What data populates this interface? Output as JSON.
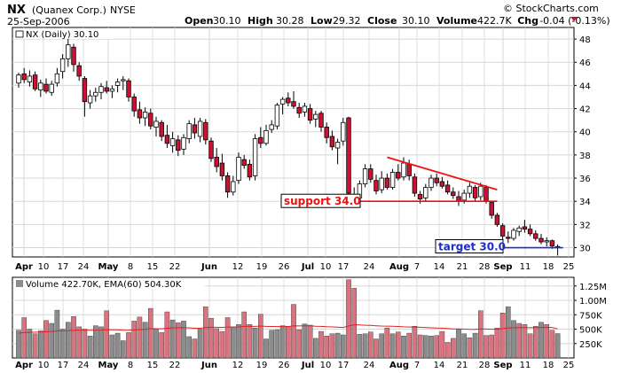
{
  "header": {
    "symbol": "NX",
    "company": "(Quanex Corp.)",
    "exchange": "NYSE",
    "date": "25-Sep-2006",
    "copyright": "© StockCharts.com",
    "stats": [
      {
        "label": "Open",
        "value": "30.10"
      },
      {
        "label": "High",
        "value": "30.28"
      },
      {
        "label": "Low",
        "value": "29.32"
      },
      {
        "label": "Close",
        "value": "30.10"
      },
      {
        "label": "Volume",
        "value": "422.7K"
      },
      {
        "label": "Chg",
        "value": "-0.04 (-0.13%)"
      }
    ]
  },
  "price_panel": {
    "legend": "NX (Daily) 30.10",
    "y_ticks": [
      30,
      32,
      34,
      36,
      38,
      40,
      42,
      44,
      46,
      48
    ],
    "support_label": "support 34.0",
    "target_label": "target 30.0"
  },
  "volume_panel": {
    "legend": "Volume 422.70K, EMA(60) 504.30K",
    "y_tick_labels": [
      "1.25M",
      "1.00M",
      "750K",
      "500K",
      "250K"
    ]
  },
  "x_axis_labels": [
    {
      "text": "Apr",
      "bold": true
    },
    {
      "text": "10",
      "bold": false
    },
    {
      "text": "17",
      "bold": false
    },
    {
      "text": "24",
      "bold": false
    },
    {
      "text": "May",
      "bold": true
    },
    {
      "text": "8",
      "bold": false
    },
    {
      "text": "15",
      "bold": false
    },
    {
      "text": "22",
      "bold": false
    },
    {
      "text": "Jun",
      "bold": true
    },
    {
      "text": "12",
      "bold": false
    },
    {
      "text": "19",
      "bold": false
    },
    {
      "text": "26",
      "bold": false
    },
    {
      "text": "Jul",
      "bold": true
    },
    {
      "text": "10",
      "bold": false
    },
    {
      "text": "17",
      "bold": false
    },
    {
      "text": "24",
      "bold": false
    },
    {
      "text": "Aug",
      "bold": true
    },
    {
      "text": "7",
      "bold": false
    },
    {
      "text": "14",
      "bold": false
    },
    {
      "text": "21",
      "bold": false
    },
    {
      "text": "28",
      "bold": false
    },
    {
      "text": "Sep",
      "bold": true
    },
    {
      "text": "11",
      "bold": false
    },
    {
      "text": "18",
      "bold": false
    },
    {
      "text": "25",
      "bold": false
    }
  ],
  "colors": {
    "up_fill": "#ffffff",
    "down_fill": "#cc1133",
    "vol_down": "#d9737f",
    "vol_up": "#8c8c8c",
    "trend_line": "#ee1111",
    "target_line": "#1c2ec8",
    "grid": "#d7d7d7",
    "ema": "#dd2222"
  },
  "chart_data": [
    {
      "type": "candlestick",
      "ylim": [
        29.2,
        49
      ],
      "ylabel_side": "right",
      "candles": [
        {
          "o": 44.2,
          "h": 45.1,
          "l": 43.8,
          "c": 44.9
        },
        {
          "o": 45.0,
          "h": 45.5,
          "l": 44.2,
          "c": 44.5
        },
        {
          "o": 44.3,
          "h": 45.3,
          "l": 43.9,
          "c": 44.8
        },
        {
          "o": 44.9,
          "h": 45.2,
          "l": 43.5,
          "c": 43.7
        },
        {
          "o": 43.6,
          "h": 44.5,
          "l": 43.0,
          "c": 44.2
        },
        {
          "o": 44.1,
          "h": 44.6,
          "l": 43.3,
          "c": 43.5
        },
        {
          "o": 43.4,
          "h": 44.4,
          "l": 43.1,
          "c": 44.1
        },
        {
          "o": 44.2,
          "h": 45.5,
          "l": 43.9,
          "c": 45.0
        },
        {
          "o": 45.2,
          "h": 46.7,
          "l": 44.6,
          "c": 46.3
        },
        {
          "o": 46.3,
          "h": 48.0,
          "l": 45.6,
          "c": 47.5
        },
        {
          "o": 47.3,
          "h": 47.6,
          "l": 45.2,
          "c": 45.8
        },
        {
          "o": 45.7,
          "h": 46.0,
          "l": 44.4,
          "c": 44.8
        },
        {
          "o": 44.6,
          "h": 44.8,
          "l": 41.3,
          "c": 42.6
        },
        {
          "o": 42.5,
          "h": 43.6,
          "l": 42.0,
          "c": 43.1
        },
        {
          "o": 43.1,
          "h": 43.8,
          "l": 42.6,
          "c": 43.4
        },
        {
          "o": 43.4,
          "h": 44.2,
          "l": 42.8,
          "c": 43.9
        },
        {
          "o": 43.8,
          "h": 44.4,
          "l": 43.3,
          "c": 43.5
        },
        {
          "o": 43.5,
          "h": 44.0,
          "l": 42.9,
          "c": 43.7
        },
        {
          "o": 44.0,
          "h": 44.6,
          "l": 43.4,
          "c": 44.3
        },
        {
          "o": 44.4,
          "h": 44.8,
          "l": 43.6,
          "c": 44.5
        },
        {
          "o": 44.4,
          "h": 44.6,
          "l": 42.6,
          "c": 43.0
        },
        {
          "o": 43.0,
          "h": 43.3,
          "l": 41.3,
          "c": 41.8
        },
        {
          "o": 41.9,
          "h": 42.6,
          "l": 40.7,
          "c": 41.2
        },
        {
          "o": 41.2,
          "h": 42.1,
          "l": 40.5,
          "c": 41.7
        },
        {
          "o": 41.6,
          "h": 42.0,
          "l": 40.2,
          "c": 40.5
        },
        {
          "o": 40.4,
          "h": 41.3,
          "l": 39.6,
          "c": 40.9
        },
        {
          "o": 40.8,
          "h": 41.0,
          "l": 39.2,
          "c": 39.6
        },
        {
          "o": 39.7,
          "h": 40.6,
          "l": 38.6,
          "c": 39.0
        },
        {
          "o": 38.8,
          "h": 40.0,
          "l": 38.2,
          "c": 39.4
        },
        {
          "o": 39.3,
          "h": 39.7,
          "l": 37.9,
          "c": 38.4
        },
        {
          "o": 38.5,
          "h": 39.8,
          "l": 38.0,
          "c": 39.5
        },
        {
          "o": 39.4,
          "h": 41.0,
          "l": 39.0,
          "c": 40.7
        },
        {
          "o": 40.6,
          "h": 41.2,
          "l": 39.4,
          "c": 39.9
        },
        {
          "o": 39.6,
          "h": 41.2,
          "l": 39.1,
          "c": 40.9
        },
        {
          "o": 40.8,
          "h": 41.1,
          "l": 38.9,
          "c": 39.3
        },
        {
          "o": 39.2,
          "h": 39.5,
          "l": 37.4,
          "c": 37.7
        },
        {
          "o": 37.8,
          "h": 38.6,
          "l": 36.5,
          "c": 37.0
        },
        {
          "o": 37.3,
          "h": 38.1,
          "l": 35.8,
          "c": 36.2
        },
        {
          "o": 36.2,
          "h": 36.5,
          "l": 34.3,
          "c": 34.8
        },
        {
          "o": 34.8,
          "h": 36.2,
          "l": 34.5,
          "c": 35.7
        },
        {
          "o": 35.8,
          "h": 38.2,
          "l": 35.5,
          "c": 37.8
        },
        {
          "o": 37.6,
          "h": 38.0,
          "l": 36.8,
          "c": 37.1
        },
        {
          "o": 37.2,
          "h": 37.6,
          "l": 35.8,
          "c": 36.1
        },
        {
          "o": 36.2,
          "h": 39.8,
          "l": 35.8,
          "c": 39.4
        },
        {
          "o": 39.5,
          "h": 40.4,
          "l": 38.6,
          "c": 39.0
        },
        {
          "o": 39.0,
          "h": 40.6,
          "l": 38.8,
          "c": 40.1
        },
        {
          "o": 40.2,
          "h": 41.0,
          "l": 39.9,
          "c": 40.6
        },
        {
          "o": 40.5,
          "h": 42.5,
          "l": 40.2,
          "c": 42.3
        },
        {
          "o": 42.4,
          "h": 43.0,
          "l": 41.5,
          "c": 42.8
        },
        {
          "o": 42.9,
          "h": 43.4,
          "l": 42.2,
          "c": 42.5
        },
        {
          "o": 42.6,
          "h": 43.5,
          "l": 42.0,
          "c": 42.2
        },
        {
          "o": 42.1,
          "h": 42.5,
          "l": 41.2,
          "c": 41.6
        },
        {
          "o": 41.7,
          "h": 42.5,
          "l": 41.3,
          "c": 42.2
        },
        {
          "o": 42.0,
          "h": 42.4,
          "l": 40.7,
          "c": 41.0
        },
        {
          "o": 41.1,
          "h": 41.8,
          "l": 40.4,
          "c": 41.5
        },
        {
          "o": 41.6,
          "h": 41.8,
          "l": 40.0,
          "c": 40.4
        },
        {
          "o": 40.4,
          "h": 40.8,
          "l": 39.0,
          "c": 39.5
        },
        {
          "o": 39.6,
          "h": 40.1,
          "l": 38.4,
          "c": 38.7
        },
        {
          "o": 38.6,
          "h": 39.4,
          "l": 37.2,
          "c": 39.1
        },
        {
          "o": 39.2,
          "h": 41.2,
          "l": 38.8,
          "c": 40.8
        },
        {
          "o": 41.2,
          "h": 41.3,
          "l": 34.2,
          "c": 34.7
        },
        {
          "o": 34.6,
          "h": 35.2,
          "l": 33.9,
          "c": 34.4
        },
        {
          "o": 34.3,
          "h": 35.8,
          "l": 34.0,
          "c": 35.5
        },
        {
          "o": 35.5,
          "h": 37.2,
          "l": 35.2,
          "c": 36.8
        },
        {
          "o": 36.8,
          "h": 37.2,
          "l": 35.6,
          "c": 35.9
        },
        {
          "o": 35.8,
          "h": 36.3,
          "l": 34.6,
          "c": 34.9
        },
        {
          "o": 35.0,
          "h": 36.6,
          "l": 34.7,
          "c": 36.0
        },
        {
          "o": 36.0,
          "h": 36.4,
          "l": 35.0,
          "c": 35.2
        },
        {
          "o": 35.2,
          "h": 36.8,
          "l": 35.0,
          "c": 36.5
        },
        {
          "o": 36.5,
          "h": 37.2,
          "l": 35.8,
          "c": 36.0
        },
        {
          "o": 36.1,
          "h": 37.8,
          "l": 35.8,
          "c": 37.3
        },
        {
          "o": 37.2,
          "h": 37.6,
          "l": 35.8,
          "c": 36.2
        },
        {
          "o": 36.1,
          "h": 36.4,
          "l": 34.4,
          "c": 34.7
        },
        {
          "o": 34.6,
          "h": 34.9,
          "l": 33.8,
          "c": 34.2
        },
        {
          "o": 34.3,
          "h": 35.5,
          "l": 34.0,
          "c": 35.2
        },
        {
          "o": 35.2,
          "h": 36.3,
          "l": 34.9,
          "c": 36.0
        },
        {
          "o": 36.0,
          "h": 36.4,
          "l": 35.3,
          "c": 35.6
        },
        {
          "o": 35.7,
          "h": 36.1,
          "l": 35.1,
          "c": 35.3
        },
        {
          "o": 35.4,
          "h": 35.8,
          "l": 34.6,
          "c": 34.8
        },
        {
          "o": 34.8,
          "h": 35.2,
          "l": 34.2,
          "c": 34.5
        },
        {
          "o": 34.4,
          "h": 34.9,
          "l": 33.6,
          "c": 34.0
        },
        {
          "o": 34.1,
          "h": 35.0,
          "l": 33.8,
          "c": 34.7
        },
        {
          "o": 34.7,
          "h": 35.6,
          "l": 34.3,
          "c": 35.3
        },
        {
          "o": 35.2,
          "h": 35.4,
          "l": 34.0,
          "c": 34.3
        },
        {
          "o": 34.4,
          "h": 35.6,
          "l": 34.1,
          "c": 35.3
        },
        {
          "o": 35.2,
          "h": 35.4,
          "l": 33.8,
          "c": 34.0
        },
        {
          "o": 33.9,
          "h": 34.0,
          "l": 32.5,
          "c": 32.8
        },
        {
          "o": 32.8,
          "h": 33.0,
          "l": 31.8,
          "c": 32.0
        },
        {
          "o": 31.9,
          "h": 32.1,
          "l": 30.7,
          "c": 31.0
        },
        {
          "o": 30.9,
          "h": 31.4,
          "l": 30.4,
          "c": 30.8
        },
        {
          "o": 30.8,
          "h": 31.7,
          "l": 30.6,
          "c": 31.5
        },
        {
          "o": 31.4,
          "h": 31.9,
          "l": 31.0,
          "c": 31.7
        },
        {
          "o": 31.8,
          "h": 32.4,
          "l": 31.3,
          "c": 31.6
        },
        {
          "o": 31.6,
          "h": 32.0,
          "l": 31.0,
          "c": 31.2
        },
        {
          "o": 31.2,
          "h": 31.5,
          "l": 30.6,
          "c": 30.8
        },
        {
          "o": 30.8,
          "h": 31.2,
          "l": 30.3,
          "c": 30.5
        },
        {
          "o": 30.5,
          "h": 30.9,
          "l": 30.1,
          "c": 30.6
        },
        {
          "o": 30.6,
          "h": 30.7,
          "l": 29.9,
          "c": 30.14
        },
        {
          "o": 30.1,
          "h": 30.28,
          "l": 29.32,
          "c": 30.1
        }
      ],
      "annotations": [
        {
          "type": "hline",
          "label": "support 34.0",
          "y": 34.0,
          "from_bar": 61,
          "to_bar": 87,
          "color": "#ee1111"
        },
        {
          "type": "trendline",
          "from": {
            "bar": 67,
            "y": 37.8
          },
          "to": {
            "bar": 87,
            "y": 35.0
          },
          "color": "#ee1111"
        },
        {
          "type": "hline",
          "label": "target 30.0",
          "y": 30.0,
          "from_bar": 86,
          "to_bar": 99,
          "color": "#1c2ec8"
        }
      ]
    },
    {
      "type": "bar",
      "ylim": [
        0,
        1400000
      ],
      "values": [
        480000,
        700000,
        500000,
        420000,
        470000,
        650000,
        600000,
        830000,
        500000,
        620000,
        720000,
        540000,
        500000,
        380000,
        560000,
        540000,
        820000,
        400000,
        430000,
        300000,
        440000,
        640000,
        710000,
        620000,
        860000,
        500000,
        440000,
        800000,
        660000,
        610000,
        640000,
        370000,
        330000,
        500000,
        890000,
        690000,
        510000,
        460000,
        700000,
        540000,
        580000,
        800000,
        580000,
        520000,
        760000,
        330000,
        480000,
        490000,
        560000,
        550000,
        930000,
        490000,
        590000,
        570000,
        340000,
        460000,
        380000,
        420000,
        430000,
        400000,
        1360000,
        1210000,
        410000,
        420000,
        450000,
        330000,
        420000,
        520000,
        420000,
        450000,
        380000,
        430000,
        550000,
        400000,
        390000,
        380000,
        390000,
        460000,
        270000,
        340000,
        500000,
        420000,
        350000,
        430000,
        820000,
        390000,
        400000,
        520000,
        780000,
        890000,
        650000,
        600000,
        580000,
        420000,
        550000,
        620000,
        580000,
        480000,
        423000
      ],
      "up_flags": [
        1,
        0,
        1,
        0,
        1,
        0,
        1,
        1,
        1,
        1,
        0,
        0,
        0,
        1,
        1,
        1,
        0,
        1,
        1,
        1,
        0,
        0,
        0,
        1,
        0,
        1,
        0,
        0,
        1,
        0,
        1,
        1,
        0,
        1,
        0,
        0,
        0,
        0,
        0,
        1,
        1,
        0,
        0,
        1,
        0,
        1,
        1,
        1,
        1,
        0,
        0,
        0,
        1,
        0,
        1,
        0,
        0,
        0,
        1,
        1,
        0,
        0,
        1,
        1,
        0,
        0,
        1,
        0,
        1,
        0,
        1,
        0,
        0,
        0,
        1,
        1,
        0,
        0,
        0,
        0,
        1,
        1,
        0,
        1,
        0,
        0,
        0,
        0,
        0,
        1,
        1,
        0,
        0,
        0,
        0,
        1,
        0,
        0,
        1
      ],
      "ema60": [
        430000,
        440000,
        445000,
        448000,
        450000,
        455000,
        460000,
        468000,
        470000,
        472000,
        478000,
        480000,
        482000,
        480000,
        482000,
        483000,
        490000,
        488000,
        487000,
        482000,
        481000,
        486000,
        493000,
        497000,
        508000,
        508000,
        506000,
        516000,
        521000,
        524000,
        528000,
        523000,
        516000,
        516000,
        528000,
        533000,
        533000,
        531000,
        537000,
        537000,
        538000,
        547000,
        548000,
        547000,
        554000,
        547000,
        546000,
        544000,
        545000,
        545000,
        558000,
        556000,
        557000,
        558000,
        551000,
        548000,
        542000,
        538000,
        534000,
        530000,
        556000,
        577000,
        573000,
        568000,
        565000,
        558000,
        554000,
        553000,
        549000,
        546000,
        540000,
        537000,
        537000,
        533000,
        528000,
        523000,
        519000,
        517000,
        509000,
        503000,
        503000,
        500000,
        496000,
        494000,
        504000,
        501000,
        498000,
        499000,
        508000,
        520000,
        524000,
        527000,
        528000,
        525000,
        526000,
        529000,
        531000,
        529000,
        504300
      ]
    }
  ]
}
